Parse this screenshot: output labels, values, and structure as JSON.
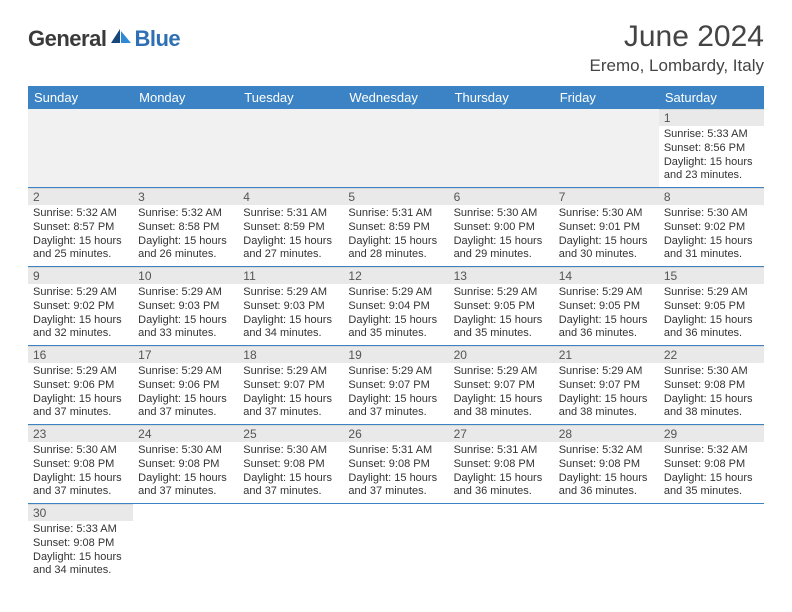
{
  "brand": {
    "general": "General",
    "blue": "Blue"
  },
  "title": "June 2024",
  "location": "Eremo, Lombardy, Italy",
  "colors": {
    "header_bg": "#3b83c4",
    "header_text": "#ffffff",
    "daynum_bg": "#e9e9e9",
    "row_divider": "#3b83c4",
    "logo_gray": "#3a3a3a",
    "logo_blue": "#2f6fb3"
  },
  "weekdays": [
    "Sunday",
    "Monday",
    "Tuesday",
    "Wednesday",
    "Thursday",
    "Friday",
    "Saturday"
  ],
  "leading_blanks": 6,
  "days": [
    {
      "n": "1",
      "sr": "5:33 AM",
      "ss": "8:56 PM",
      "dl": "15 hours and 23 minutes."
    },
    {
      "n": "2",
      "sr": "5:32 AM",
      "ss": "8:57 PM",
      "dl": "15 hours and 25 minutes."
    },
    {
      "n": "3",
      "sr": "5:32 AM",
      "ss": "8:58 PM",
      "dl": "15 hours and 26 minutes."
    },
    {
      "n": "4",
      "sr": "5:31 AM",
      "ss": "8:59 PM",
      "dl": "15 hours and 27 minutes."
    },
    {
      "n": "5",
      "sr": "5:31 AM",
      "ss": "8:59 PM",
      "dl": "15 hours and 28 minutes."
    },
    {
      "n": "6",
      "sr": "5:30 AM",
      "ss": "9:00 PM",
      "dl": "15 hours and 29 minutes."
    },
    {
      "n": "7",
      "sr": "5:30 AM",
      "ss": "9:01 PM",
      "dl": "15 hours and 30 minutes."
    },
    {
      "n": "8",
      "sr": "5:30 AM",
      "ss": "9:02 PM",
      "dl": "15 hours and 31 minutes."
    },
    {
      "n": "9",
      "sr": "5:29 AM",
      "ss": "9:02 PM",
      "dl": "15 hours and 32 minutes."
    },
    {
      "n": "10",
      "sr": "5:29 AM",
      "ss": "9:03 PM",
      "dl": "15 hours and 33 minutes."
    },
    {
      "n": "11",
      "sr": "5:29 AM",
      "ss": "9:03 PM",
      "dl": "15 hours and 34 minutes."
    },
    {
      "n": "12",
      "sr": "5:29 AM",
      "ss": "9:04 PM",
      "dl": "15 hours and 35 minutes."
    },
    {
      "n": "13",
      "sr": "5:29 AM",
      "ss": "9:05 PM",
      "dl": "15 hours and 35 minutes."
    },
    {
      "n": "14",
      "sr": "5:29 AM",
      "ss": "9:05 PM",
      "dl": "15 hours and 36 minutes."
    },
    {
      "n": "15",
      "sr": "5:29 AM",
      "ss": "9:05 PM",
      "dl": "15 hours and 36 minutes."
    },
    {
      "n": "16",
      "sr": "5:29 AM",
      "ss": "9:06 PM",
      "dl": "15 hours and 37 minutes."
    },
    {
      "n": "17",
      "sr": "5:29 AM",
      "ss": "9:06 PM",
      "dl": "15 hours and 37 minutes."
    },
    {
      "n": "18",
      "sr": "5:29 AM",
      "ss": "9:07 PM",
      "dl": "15 hours and 37 minutes."
    },
    {
      "n": "19",
      "sr": "5:29 AM",
      "ss": "9:07 PM",
      "dl": "15 hours and 37 minutes."
    },
    {
      "n": "20",
      "sr": "5:29 AM",
      "ss": "9:07 PM",
      "dl": "15 hours and 38 minutes."
    },
    {
      "n": "21",
      "sr": "5:29 AM",
      "ss": "9:07 PM",
      "dl": "15 hours and 38 minutes."
    },
    {
      "n": "22",
      "sr": "5:30 AM",
      "ss": "9:08 PM",
      "dl": "15 hours and 38 minutes."
    },
    {
      "n": "23",
      "sr": "5:30 AM",
      "ss": "9:08 PM",
      "dl": "15 hours and 37 minutes."
    },
    {
      "n": "24",
      "sr": "5:30 AM",
      "ss": "9:08 PM",
      "dl": "15 hours and 37 minutes."
    },
    {
      "n": "25",
      "sr": "5:30 AM",
      "ss": "9:08 PM",
      "dl": "15 hours and 37 minutes."
    },
    {
      "n": "26",
      "sr": "5:31 AM",
      "ss": "9:08 PM",
      "dl": "15 hours and 37 minutes."
    },
    {
      "n": "27",
      "sr": "5:31 AM",
      "ss": "9:08 PM",
      "dl": "15 hours and 36 minutes."
    },
    {
      "n": "28",
      "sr": "5:32 AM",
      "ss": "9:08 PM",
      "dl": "15 hours and 36 minutes."
    },
    {
      "n": "29",
      "sr": "5:32 AM",
      "ss": "9:08 PM",
      "dl": "15 hours and 35 minutes."
    },
    {
      "n": "30",
      "sr": "5:33 AM",
      "ss": "9:08 PM",
      "dl": "15 hours and 34 minutes."
    }
  ],
  "labels": {
    "sunrise": "Sunrise:",
    "sunset": "Sunset:",
    "daylight": "Daylight:"
  }
}
